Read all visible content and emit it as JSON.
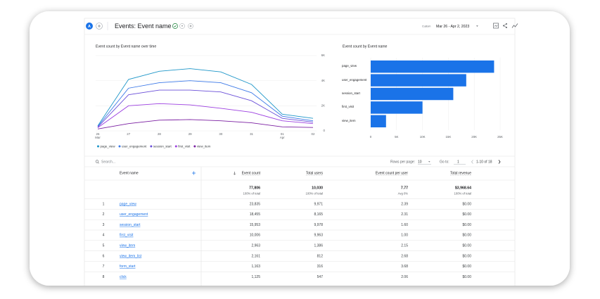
{
  "header": {
    "avatar": "A",
    "title": "Events: Event name",
    "date_label": "Custom",
    "date_range": "Mar 26 - Apr 2, 2023"
  },
  "chart_data": [
    {
      "type": "line",
      "title": "Event count by Event name over time",
      "categories": [
        "26 Mar",
        "27",
        "28",
        "29",
        "30",
        "31",
        "01 Apr",
        "02"
      ],
      "ylim": [
        0,
        6000
      ],
      "yticks": [
        0,
        {
          "value": 2000,
          "label": "2K"
        },
        {
          "value": 4000,
          "label": "4K"
        },
        {
          "value": 6000,
          "label": "6K"
        }
      ],
      "grid": true,
      "series": [
        {
          "name": "page_view",
          "color": "#1e96c8",
          "values": [
            400,
            4100,
            4750,
            4960,
            4700,
            3700,
            1330,
            1000
          ]
        },
        {
          "name": "user_engagement",
          "color": "#3b78e7",
          "values": [
            350,
            3400,
            3840,
            4000,
            3840,
            3040,
            1170,
            800
          ]
        },
        {
          "name": "session_start",
          "color": "#6a4fd8",
          "values": [
            300,
            2880,
            3250,
            3250,
            3100,
            2400,
            1000,
            700
          ]
        },
        {
          "name": "first_visit",
          "color": "#9c3fe0",
          "values": [
            250,
            2000,
            2170,
            2070,
            1800,
            1480,
            800,
            580
          ]
        },
        {
          "name": "view_item",
          "color": "#7b1fa2",
          "values": [
            150,
            580,
            850,
            900,
            800,
            640,
            320,
            270
          ]
        }
      ]
    },
    {
      "type": "bar",
      "orientation": "horizontal",
      "title": "Event count by Event name",
      "categories": [
        "page_view",
        "user_engagement",
        "session_start",
        "first_visit",
        "view_item"
      ],
      "values": [
        23835,
        18455,
        15953,
        10006,
        2963
      ],
      "color": "#1a73e8",
      "xlim": [
        0,
        25000
      ],
      "xticks": [
        0,
        {
          "value": 5000,
          "label": "5K"
        },
        {
          "value": 10000,
          "label": "10K"
        },
        {
          "value": 15000,
          "label": "15K"
        },
        {
          "value": 20000,
          "label": "20K"
        },
        {
          "value": 25000,
          "label": "25K"
        }
      ],
      "grid": true
    }
  ],
  "table": {
    "search_placeholder": "Search...",
    "rows_per_page_label": "Rows per page:",
    "rows_per_page": 10,
    "go_to_label": "Go to:",
    "go_to": 1,
    "pagination": "1-10 of 18",
    "columns": [
      "Event name",
      "Event count",
      "Total users",
      "Event count per user",
      "Total revenue"
    ],
    "totals": [
      {
        "value": "77,806",
        "note": "100% of total"
      },
      {
        "value": "10,030",
        "note": "100% of total"
      },
      {
        "value": "7.77",
        "note": "Avg 0%"
      },
      {
        "value": "$3,968.64",
        "note": "100% of total"
      }
    ],
    "rows": [
      [
        1,
        "page_view",
        "23,835",
        "9,971",
        "2.39",
        "$0.00"
      ],
      [
        2,
        "user_engagement",
        "18,455",
        "8,165",
        "2.31",
        "$0.00"
      ],
      [
        3,
        "session_start",
        "15,953",
        "9,978",
        "1.60",
        "$0.00"
      ],
      [
        4,
        "first_visit",
        "10,006",
        "9,963",
        "1.00",
        "$0.00"
      ],
      [
        5,
        "view_item",
        "2,963",
        "1,386",
        "2.15",
        "$0.00"
      ],
      [
        6,
        "view_item_list",
        "2,161",
        "812",
        "2.68",
        "$0.00"
      ],
      [
        7,
        "form_start",
        "1,163",
        "316",
        "3.68",
        "$0.00"
      ],
      [
        8,
        "click",
        "1,125",
        "547",
        "2.06",
        "$0.00"
      ]
    ]
  }
}
